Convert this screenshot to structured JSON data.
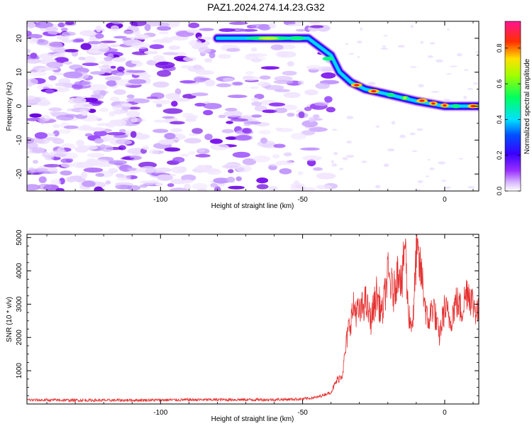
{
  "title": "PAZ1.2024.274.14.23.G32",
  "colors": {
    "snr_line": "#e63232",
    "spectrogram_cmap": [
      "#ffffff",
      "#e0c8ff",
      "#8a2be2",
      "#0000ff",
      "#00e5ff",
      "#00ff00",
      "#ffff00",
      "#ff0000",
      "#ff1493"
    ]
  },
  "chart_data": [
    {
      "type": "heatmap",
      "title": "PAZ1.2024.274.14.23.G32",
      "xlabel": "Height of straight line (km)",
      "ylabel": "Frequency (Hz)",
      "xlim": [
        -147,
        12
      ],
      "ylim": [
        -25,
        25
      ],
      "xticks": [
        -100,
        -50,
        0
      ],
      "yticks": [
        -20,
        -10,
        0,
        10,
        20
      ],
      "colorbar": {
        "label": "Normalized spectral amplitude",
        "range": [
          0,
          0.95
        ],
        "ticks": [
          0.0,
          0.2,
          0.4,
          0.6,
          0.8
        ]
      },
      "ridge": {
        "description_points": [
          {
            "x": -80,
            "y": 20
          },
          {
            "x": -60,
            "y": 20
          },
          {
            "x": -48,
            "y": 20
          },
          {
            "x": -40,
            "y": 15
          },
          {
            "x": -37,
            "y": 10
          },
          {
            "x": -33,
            "y": 7
          },
          {
            "x": -28,
            "y": 5
          },
          {
            "x": -20,
            "y": 3.5
          },
          {
            "x": -10,
            "y": 1.5
          },
          {
            "x": 0,
            "y": 0
          },
          {
            "x": 12,
            "y": 0
          }
        ]
      }
    },
    {
      "type": "line",
      "xlabel": "Height of straight line (km)",
      "ylabel": "SNR (10 * v/v)",
      "xlim": [
        -147,
        12
      ],
      "ylim": [
        0,
        5100
      ],
      "xticks": [
        -100,
        -50,
        0
      ],
      "yticks": [
        1000,
        2000,
        3000,
        4000,
        5000
      ],
      "series": [
        {
          "x": [
            -147,
            -120,
            -100,
            -80,
            -60,
            -50,
            -45,
            -40,
            -38,
            -36,
            -34,
            -32,
            -30,
            -28,
            -26,
            -24,
            -22,
            -20,
            -18,
            -16,
            -15,
            -14,
            -13,
            -12,
            -11,
            -10,
            -8,
            -6,
            -4,
            -2,
            0,
            2,
            4,
            6,
            8,
            10,
            12
          ],
          "y": [
            120,
            110,
            120,
            130,
            130,
            150,
            200,
            350,
            700,
            900,
            2200,
            2900,
            2700,
            3100,
            2500,
            3300,
            2700,
            3900,
            3300,
            4200,
            3500,
            5000,
            3000,
            2400,
            2600,
            4600,
            3800,
            2400,
            3000,
            2000,
            2900,
            2500,
            3100,
            2800,
            3500,
            3000,
            2700
          ]
        }
      ]
    }
  ]
}
